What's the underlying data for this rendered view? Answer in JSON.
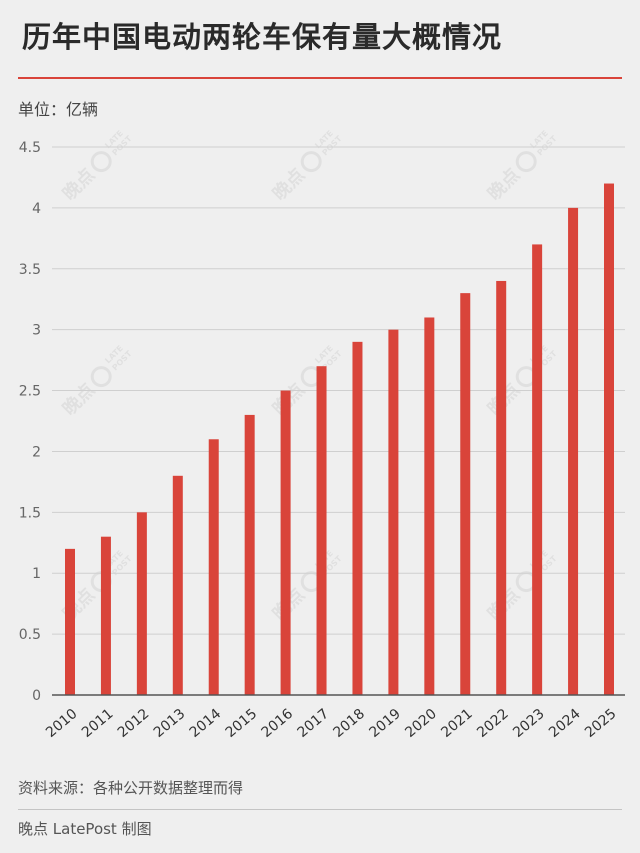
{
  "header": {
    "title": "历年中国电动两轮车保有量大概情况",
    "unit": "单位：亿辆"
  },
  "footer": {
    "source": "资料来源：各种公开数据整理而得",
    "credit": "晚点 LatePost 制图"
  },
  "watermark": {
    "cn": "晚点",
    "en1": "LATE",
    "en2": "POST"
  },
  "chart_data": {
    "type": "bar",
    "categories": [
      "2010",
      "2011",
      "2012",
      "2013",
      "2014",
      "2015",
      "2016",
      "2017",
      "2018",
      "2019",
      "2020",
      "2021",
      "2022",
      "2023",
      "2024",
      "2025"
    ],
    "values": [
      1.2,
      1.3,
      1.5,
      1.8,
      2.1,
      2.3,
      2.5,
      2.7,
      2.9,
      3.0,
      3.1,
      3.3,
      3.4,
      3.7,
      4.0,
      4.2
    ],
    "ylim": [
      0,
      4.5
    ],
    "yticks": [
      0,
      0.5,
      1,
      1.5,
      2,
      2.5,
      3,
      3.5,
      4,
      4.5
    ],
    "ytick_labels": [
      "0",
      "0.5",
      "1",
      "1.5",
      "2",
      "2.5",
      "3",
      "3.5",
      "4",
      "4.5"
    ],
    "grid": true,
    "bar_color": "#d9443a"
  }
}
